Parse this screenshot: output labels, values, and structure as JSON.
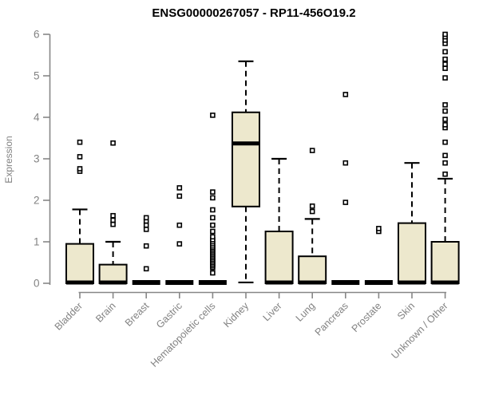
{
  "title": "ENSG00000267057 - RP11-456O19.2",
  "chart_data": {
    "type": "box",
    "title": "ENSG00000267057 - RP11-456O19.2",
    "xlabel": "",
    "ylabel": "Expression",
    "ylim": [
      0,
      6
    ],
    "yticks": [
      0,
      1,
      2,
      3,
      4,
      5,
      6
    ],
    "grid": false,
    "legend": null,
    "categories": [
      "Bladder",
      "Brain",
      "Breast",
      "Gastric",
      "Hematopoietic cells",
      "Kidney",
      "Liver",
      "Lung",
      "Pancreas",
      "Prostate",
      "Skin",
      "Unknown / Other"
    ],
    "series": [
      {
        "category": "Bladder",
        "low": 0,
        "q1": 0,
        "median": 0.02,
        "q3": 0.95,
        "high": 1.78,
        "outliers": [
          2.7,
          2.76,
          3.05,
          3.4
        ]
      },
      {
        "category": "Brain",
        "low": 0,
        "q1": 0,
        "median": 0.02,
        "q3": 0.45,
        "high": 1.0,
        "outliers": [
          1.42,
          1.52,
          1.63,
          3.38
        ]
      },
      {
        "category": "Breast",
        "low": 0,
        "q1": 0,
        "median": 0.02,
        "q3": 0,
        "high": 0,
        "outliers": [
          0.35,
          0.9,
          1.3,
          1.4,
          1.5,
          1.58
        ]
      },
      {
        "category": "Gastric",
        "low": 0,
        "q1": 0,
        "median": 0.02,
        "q3": 0,
        "high": 0,
        "outliers": [
          0.95,
          1.4,
          2.1,
          2.3
        ]
      },
      {
        "category": "Hematopoietic cells",
        "low": 0,
        "q1": 0,
        "median": 0.02,
        "q3": 0,
        "high": 0,
        "outliers": [
          0.25,
          0.38,
          0.42,
          0.46,
          0.5,
          0.54,
          0.58,
          0.62,
          0.66,
          0.7,
          0.74,
          0.78,
          0.82,
          0.86,
          0.9,
          0.95,
          1.0,
          1.05,
          1.12,
          1.25,
          1.4,
          1.58,
          1.77,
          2.06,
          2.2,
          4.05
        ]
      },
      {
        "category": "Kidney",
        "low": 0.02,
        "q1": 1.85,
        "median": 3.37,
        "q3": 4.12,
        "high": 5.35,
        "outliers": []
      },
      {
        "category": "Liver",
        "low": 0,
        "q1": 0,
        "median": 0.02,
        "q3": 1.25,
        "high": 3.0,
        "outliers": []
      },
      {
        "category": "Lung",
        "low": 0,
        "q1": 0,
        "median": 0.02,
        "q3": 0.65,
        "high": 1.55,
        "outliers": [
          1.73,
          1.86,
          3.2
        ]
      },
      {
        "category": "Pancreas",
        "low": 0,
        "q1": 0,
        "median": 0.02,
        "q3": 0,
        "high": 0,
        "outliers": [
          1.95,
          2.9,
          4.55
        ]
      },
      {
        "category": "Prostate",
        "low": 0,
        "q1": 0,
        "median": 0.02,
        "q3": 0,
        "high": 0,
        "outliers": [
          1.25,
          1.32
        ]
      },
      {
        "category": "Skin",
        "low": 0,
        "q1": 0,
        "median": 0.02,
        "q3": 1.45,
        "high": 2.9,
        "outliers": []
      },
      {
        "category": "Unknown / Other",
        "low": 0,
        "q1": 0,
        "median": 0.02,
        "q3": 1.0,
        "high": 2.52,
        "outliers": [
          2.63,
          2.9,
          3.08,
          3.4,
          3.75,
          3.82,
          3.95,
          4.15,
          4.3,
          4.95,
          5.18,
          5.28,
          5.4,
          5.58,
          5.78,
          5.86,
          5.94,
          6.0
        ]
      }
    ]
  },
  "colors": {
    "box_fill": "#EDE8CD",
    "box_border": "#000000",
    "median": "#000000",
    "whisker": "#000000",
    "outlier": "#000000",
    "axis": "#878787",
    "tick_label": "#828282",
    "title_text": "#000000",
    "background": "#FFFFFF"
  }
}
